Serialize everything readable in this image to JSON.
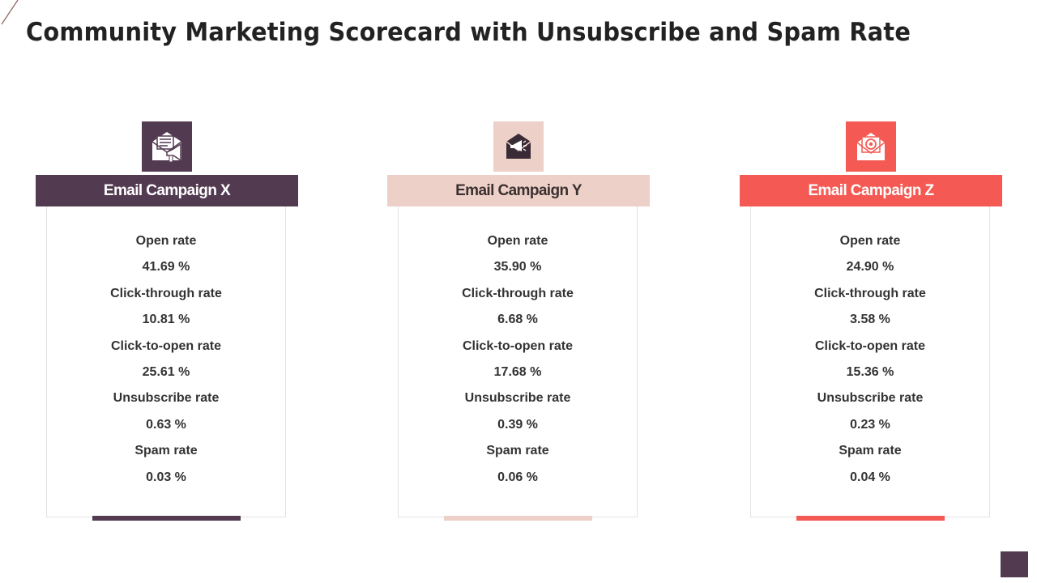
{
  "title": "Community Marketing Scorecard with Unsubscribe and Spam Rate",
  "colors": {
    "campaign_x": "#523a50",
    "campaign_y": "#edd0c8",
    "campaign_z": "#f45a53",
    "title_text": "#222222",
    "metric_text": "#333333"
  },
  "campaigns": [
    {
      "name": "Email Campaign X",
      "icon": "envelope-megaphone-icon",
      "metrics": [
        {
          "label": "Open rate",
          "value": "41.69 %"
        },
        {
          "label": "Click-through rate",
          "value": "10.81 %"
        },
        {
          "label": "Click-to-open rate",
          "value": "25.61 %"
        },
        {
          "label": "Unsubscribe rate",
          "value": "0.63 %"
        },
        {
          "label": "Spam rate",
          "value": "0.03 %"
        }
      ]
    },
    {
      "name": "Email Campaign Y",
      "icon": "envelope-megaphone-icon",
      "metrics": [
        {
          "label": "Open rate",
          "value": "35.90 %"
        },
        {
          "label": "Click-through rate",
          "value": "6.68 %"
        },
        {
          "label": "Click-to-open rate",
          "value": "17.68 %"
        },
        {
          "label": "Unsubscribe rate",
          "value": "0.39 %"
        },
        {
          "label": "Spam rate",
          "value": "0.06 %"
        }
      ]
    },
    {
      "name": "Email Campaign Z",
      "icon": "email-at-icon",
      "metrics": [
        {
          "label": "Open rate",
          "value": "24.90 %"
        },
        {
          "label": "Click-through rate",
          "value": "3.58 %"
        },
        {
          "label": "Click-to-open rate",
          "value": "15.36 %"
        },
        {
          "label": "Unsubscribe rate",
          "value": "0.23 %"
        },
        {
          "label": "Spam rate",
          "value": "0.04 %"
        }
      ]
    }
  ]
}
